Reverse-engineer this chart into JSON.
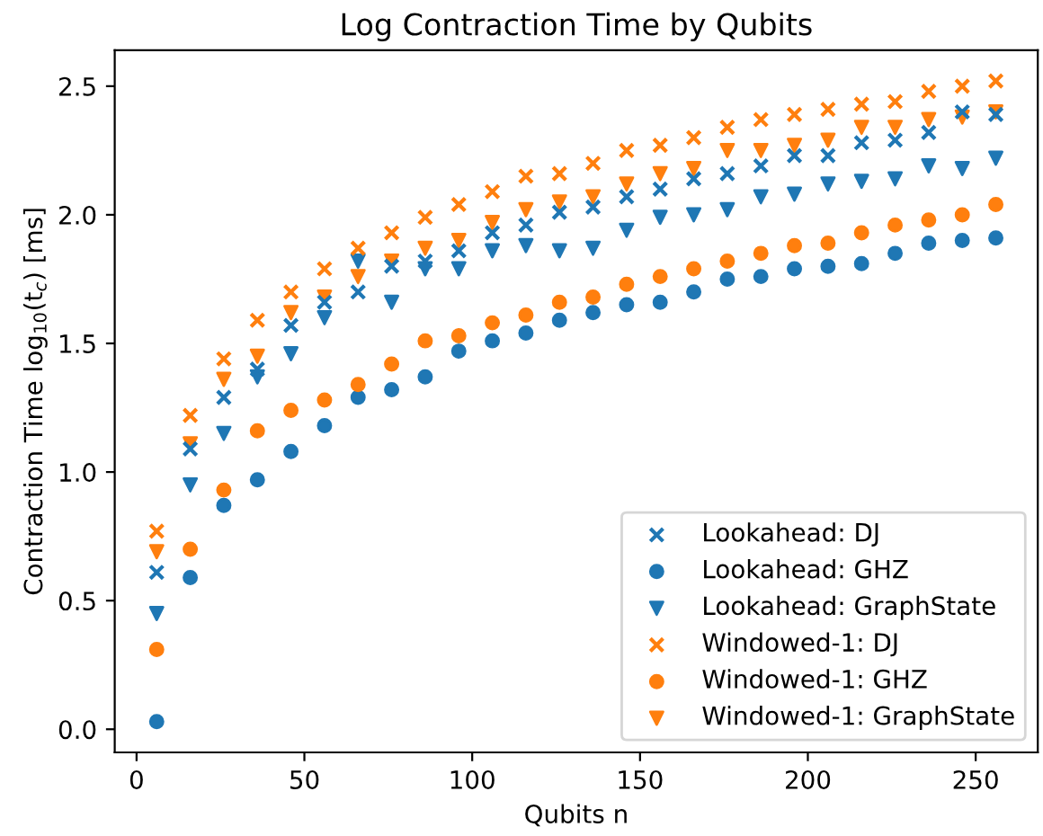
{
  "chart_data": {
    "type": "scatter",
    "title": "Log Contraction Time by Qubits",
    "xlabel": "Qubits n",
    "ylabel": "Contraction Time log$_{10}$(t$_{c}$) [ms]",
    "x": [
      6,
      16,
      26,
      36,
      46,
      56,
      66,
      76,
      86,
      96,
      106,
      116,
      126,
      136,
      146,
      156,
      166,
      176,
      186,
      196,
      206,
      216,
      226,
      236,
      246,
      256
    ],
    "xlim": [
      -6.5,
      268.5
    ],
    "xticks": [
      0,
      50,
      100,
      150,
      200,
      250
    ],
    "ylim": [
      -0.09,
      2.64
    ],
    "yticks": [
      {
        "value": 0,
        "label": "0.0"
      },
      0.5,
      {
        "value": 1,
        "label": "1.0"
      },
      1.5,
      {
        "value": 2,
        "label": "2.0"
      },
      2.5
    ],
    "grid": false,
    "legend": "bottom right",
    "series": [
      {
        "name": "Lookahead: DJ",
        "color": "#1f77b4",
        "marker": "cross",
        "values": [
          0.61,
          1.09,
          1.29,
          1.4,
          1.57,
          1.66,
          1.7,
          1.8,
          1.82,
          1.86,
          1.93,
          1.96,
          2.01,
          2.03,
          2.07,
          2.1,
          2.14,
          2.16,
          2.19,
          2.23,
          2.23,
          2.28,
          2.29,
          2.32,
          2.4,
          2.39
        ]
      },
      {
        "name": "Lookahead: GHZ",
        "color": "#1f77b4",
        "marker": "circle",
        "values": [
          0.03,
          0.59,
          0.87,
          0.97,
          1.08,
          1.18,
          1.29,
          1.32,
          1.37,
          1.47,
          1.51,
          1.54,
          1.59,
          1.62,
          1.65,
          1.66,
          1.7,
          1.75,
          1.76,
          1.79,
          1.8,
          1.81,
          1.85,
          1.89,
          1.9,
          1.91
        ]
      },
      {
        "name": "Lookahead: GraphState",
        "color": "#1f77b4",
        "marker": "triangle",
        "values": [
          0.45,
          0.95,
          1.15,
          1.37,
          1.46,
          1.6,
          1.82,
          1.66,
          1.79,
          1.79,
          1.86,
          1.88,
          1.86,
          1.87,
          1.94,
          1.99,
          2.0,
          2.02,
          2.07,
          2.08,
          2.12,
          2.13,
          2.14,
          2.19,
          2.18,
          2.22
        ]
      },
      {
        "name": "Windowed-1: DJ",
        "color": "#ff7f0e",
        "marker": "cross",
        "values": [
          0.77,
          1.22,
          1.44,
          1.59,
          1.7,
          1.79,
          1.87,
          1.93,
          1.99,
          2.04,
          2.09,
          2.15,
          2.16,
          2.2,
          2.25,
          2.27,
          2.3,
          2.34,
          2.37,
          2.39,
          2.41,
          2.43,
          2.44,
          2.48,
          2.5,
          2.52
        ]
      },
      {
        "name": "Windowed-1: GHZ",
        "color": "#ff7f0e",
        "marker": "circle",
        "values": [
          0.31,
          0.7,
          0.93,
          1.16,
          1.24,
          1.28,
          1.34,
          1.42,
          1.51,
          1.53,
          1.58,
          1.61,
          1.66,
          1.68,
          1.73,
          1.76,
          1.79,
          1.82,
          1.85,
          1.88,
          1.89,
          1.93,
          1.96,
          1.98,
          2.0,
          2.04
        ]
      },
      {
        "name": "Windowed-1: GraphState",
        "color": "#ff7f0e",
        "marker": "triangle",
        "values": [
          0.69,
          1.11,
          1.36,
          1.45,
          1.62,
          1.68,
          1.76,
          1.82,
          1.87,
          1.9,
          1.97,
          2.02,
          2.05,
          2.07,
          2.12,
          2.16,
          2.18,
          2.25,
          2.25,
          2.27,
          2.29,
          2.34,
          2.34,
          2.37,
          2.38,
          2.4
        ]
      }
    ]
  }
}
